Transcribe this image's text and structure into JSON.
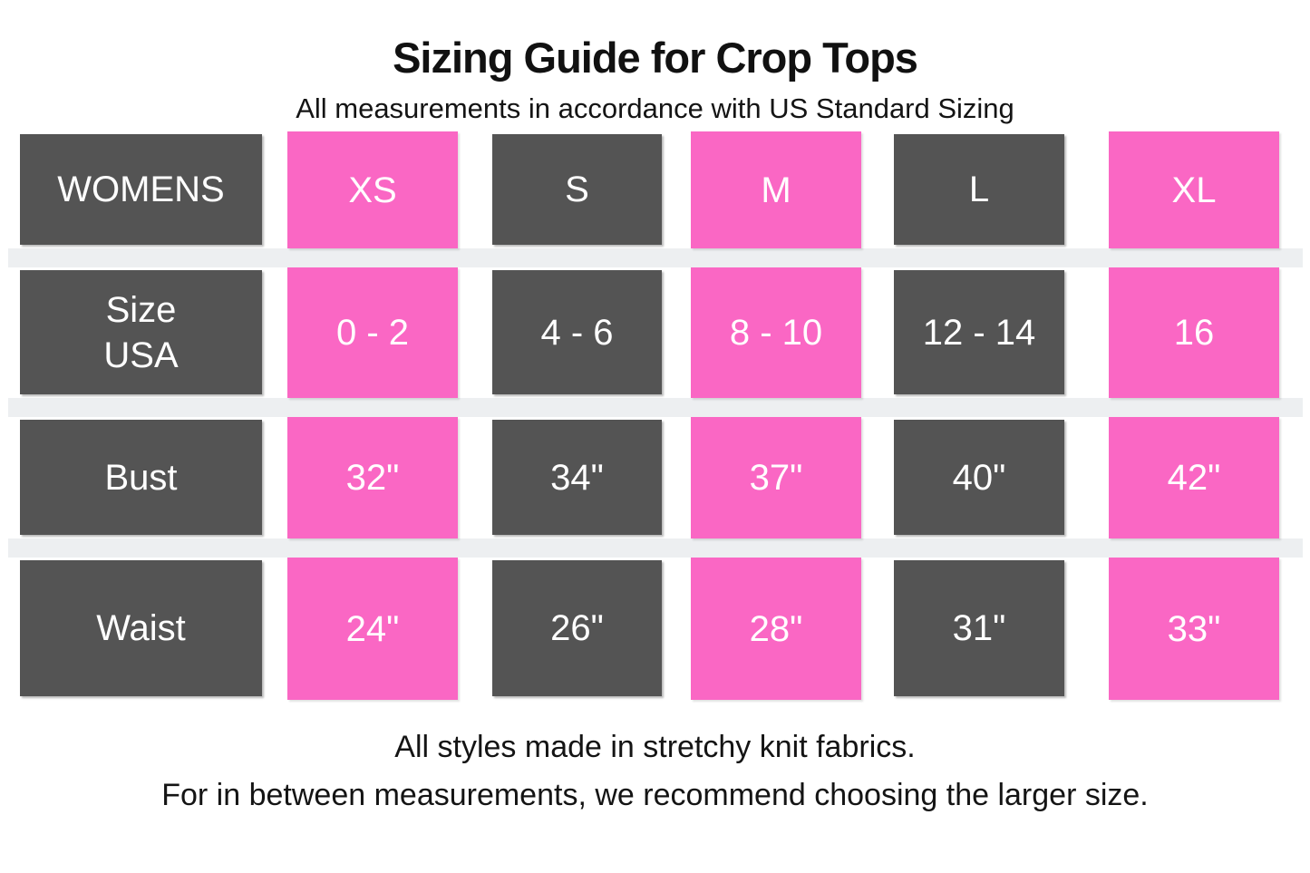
{
  "header": {
    "title": "Sizing Guide for Crop Tops",
    "subtitle": "All measurements in accordance with US Standard Sizing"
  },
  "table": {
    "rows": [
      {
        "cells": [
          "WOMENS",
          "XS",
          "S",
          "M",
          "L",
          "XL"
        ]
      },
      {
        "cells": [
          "Size\nUSA",
          "0 - 2",
          "4 - 6",
          "8 - 10",
          "12 - 14",
          "16"
        ]
      },
      {
        "cells": [
          "Bust",
          "32\"",
          "34\"",
          "37\"",
          "40\"",
          "42\""
        ]
      },
      {
        "cells": [
          "Waist",
          "24\"",
          "26\"",
          "28\"",
          "31\"",
          "33\""
        ]
      }
    ]
  },
  "footer": {
    "lines": [
      "All styles made in stretchy knit fabrics.",
      "For in between measurements, we recommend choosing the larger size."
    ]
  },
  "colors": {
    "pink": "#fa67c4",
    "dark_gray": "#545454",
    "divider_band": "#edeff1",
    "cell_text": "#ffffff",
    "heading_text": "#111111",
    "background": "#ffffff"
  },
  "chart_data": {
    "type": "table",
    "title": "Sizing Guide for Crop Tops",
    "subtitle": "All measurements in accordance with US Standard Sizing",
    "columns": [
      "WOMENS",
      "XS",
      "S",
      "M",
      "L",
      "XL"
    ],
    "rows": [
      [
        "Size USA",
        "0 - 2",
        "4 - 6",
        "8 - 10",
        "12 - 14",
        "16"
      ],
      [
        "Bust",
        "32\"",
        "34\"",
        "37\"",
        "40\"",
        "42\""
      ],
      [
        "Waist",
        "24\"",
        "26\"",
        "28\"",
        "31\"",
        "33\""
      ]
    ],
    "notes": [
      "All styles made in stretchy knit fabrics.",
      "For in between measurements, we recommend choosing the larger size."
    ],
    "layout": {
      "column_color_pattern": [
        "dark_gray",
        "pink",
        "dark_gray",
        "pink",
        "dark_gray",
        "pink"
      ],
      "row_dividers": "light gray full-width bands between rows",
      "grid": false,
      "legend": false
    }
  }
}
